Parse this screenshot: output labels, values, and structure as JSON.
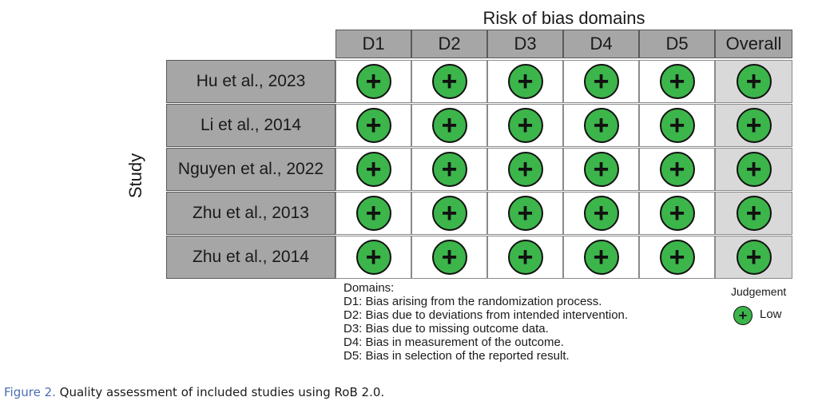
{
  "domains_title": "Risk of bias domains",
  "columns": [
    "D1",
    "D2",
    "D3",
    "D4",
    "D5",
    "Overall"
  ],
  "y_axis_label": "Study",
  "studies": [
    {
      "name": "Hu et al., 2023",
      "judgements": [
        "+",
        "+",
        "+",
        "+",
        "+",
        "+"
      ]
    },
    {
      "name": "Li et al., 2014",
      "judgements": [
        "+",
        "+",
        "+",
        "+",
        "+",
        "+"
      ]
    },
    {
      "name": "Nguyen et al., 2022",
      "judgements": [
        "+",
        "+",
        "+",
        "+",
        "+",
        "+"
      ]
    },
    {
      "name": "Zhu et al., 2013",
      "judgements": [
        "+",
        "+",
        "+",
        "+",
        "+",
        "+"
      ]
    },
    {
      "name": "Zhu et al., 2014",
      "judgements": [
        "+",
        "+",
        "+",
        "+",
        "+",
        "+"
      ]
    }
  ],
  "legend": {
    "domains_heading": "Domains:",
    "domain_lines": [
      "D1: Bias arising from the randomization process.",
      "D2: Bias due to deviations from intended intervention.",
      "D3: Bias due to missing outcome data.",
      "D4: Bias in measurement of the outcome.",
      "D5: Bias in selection of the reported result."
    ],
    "judgement_heading": "Judgement",
    "judgement_symbol": "+",
    "judgement_label": "Low"
  },
  "colors": {
    "low": "#3cb54a",
    "header": "#a6a6a6",
    "overall_bg": "#d9d9d9",
    "caption_accent": "#4a6fb5"
  },
  "caption": {
    "figure_label": "Figure 2.",
    "text": " Quality assessment of included studies using RoB 2.0."
  }
}
